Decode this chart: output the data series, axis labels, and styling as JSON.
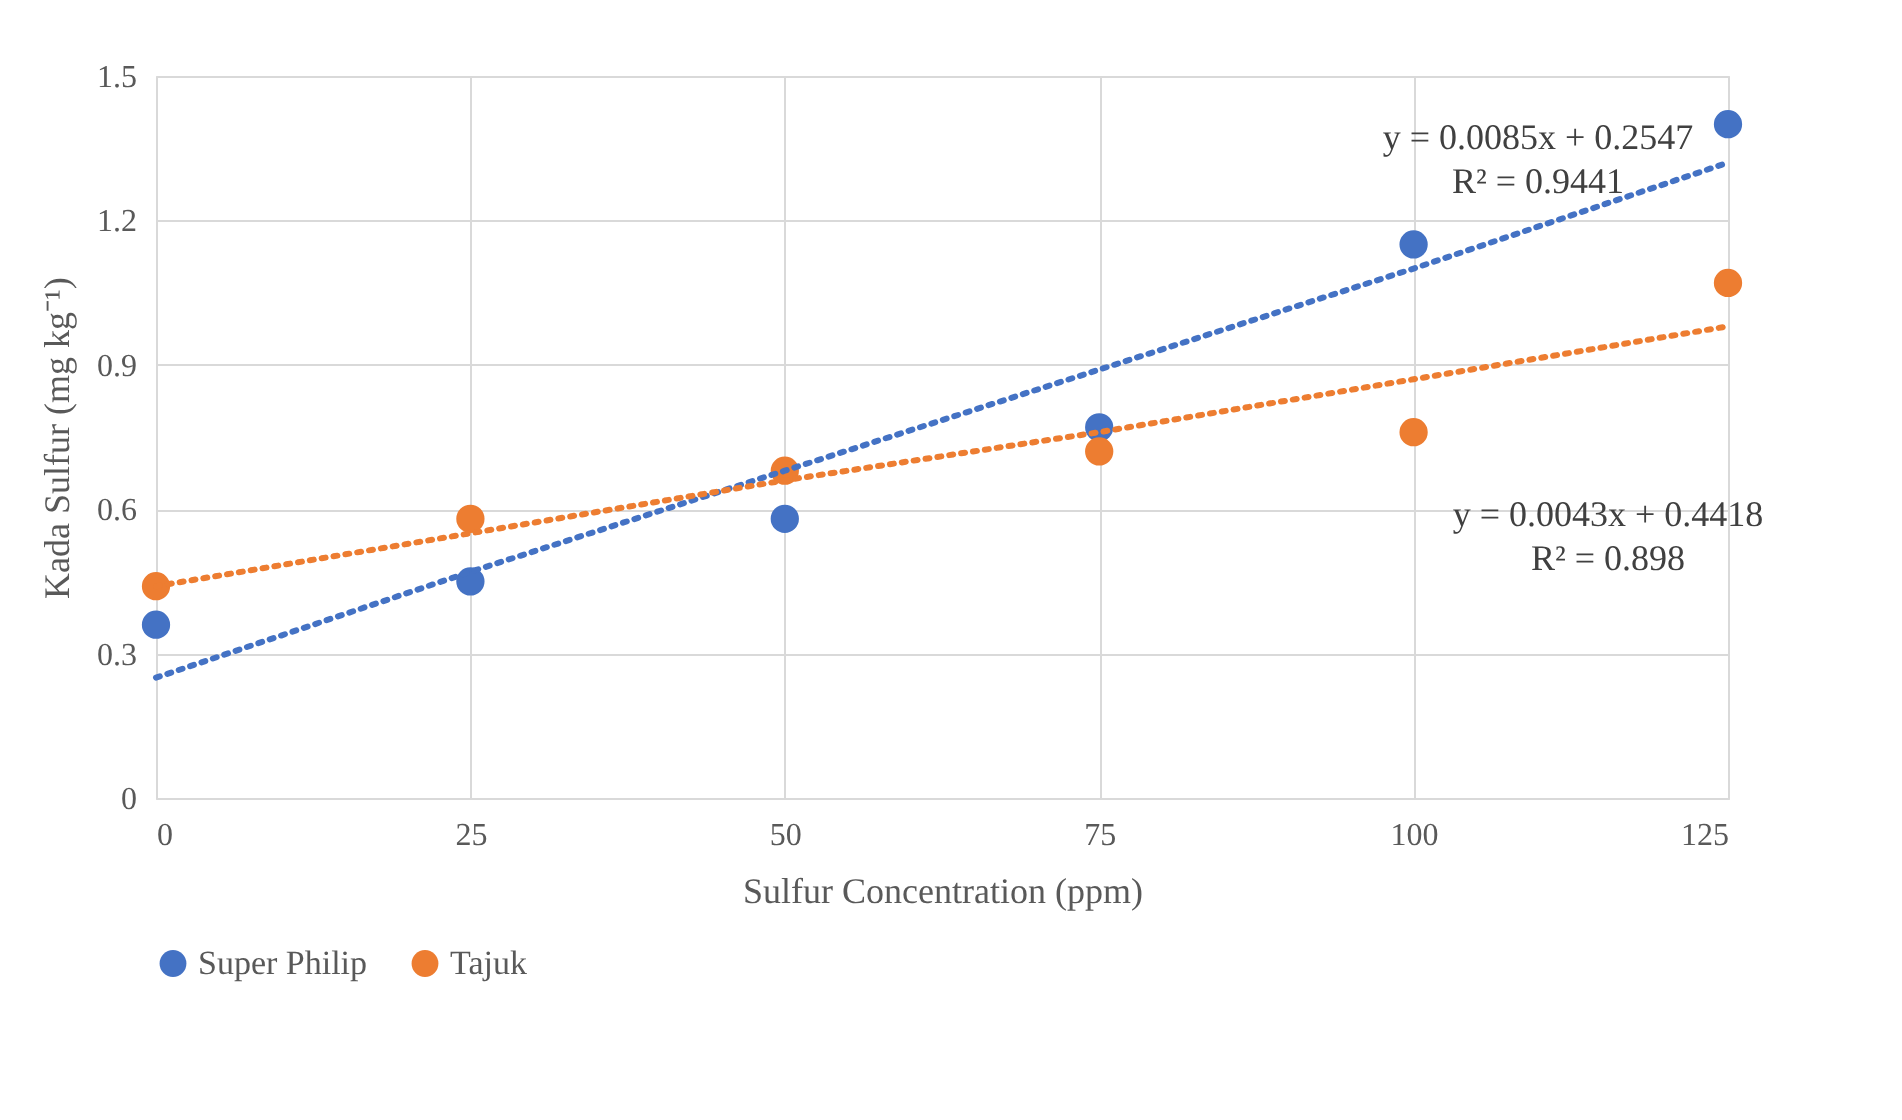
{
  "chart_data": {
    "type": "scatter",
    "xlabel": "Sulfur Concentration (ppm)",
    "ylabel": "Kada Sulfur (mg kg⁻¹)",
    "x": [
      0,
      25,
      50,
      75,
      100,
      125
    ],
    "series": [
      {
        "name": "Super Philip",
        "color": "#4472c4",
        "values": [
          0.36,
          0.45,
          0.58,
          0.77,
          1.15,
          1.4
        ]
      },
      {
        "name": "Tajuk",
        "color": "#ed7d31",
        "values": [
          0.44,
          0.58,
          0.68,
          0.72,
          0.76,
          1.07
        ]
      },
      {
        "type": "line",
        "color": "#4472c4",
        "values": [
          0.25,
          0.47,
          0.68,
          0.89,
          1.1,
          1.32
        ],
        "line_style": "dotted",
        "marker": "none"
      },
      {
        "type": "line",
        "color": "#ed7d31",
        "values": [
          0.44,
          0.55,
          0.66,
          0.76,
          0.87,
          0.98
        ],
        "line_style": "dotted",
        "marker": "none"
      }
    ],
    "annotations": [
      "y = 0.0085x + 0.2547",
      "R² = 0.9441",
      "y = 0.0043x + 0.4418",
      "R² = 0.898"
    ],
    "xlim": [
      0,
      125
    ],
    "xticks": [
      0,
      25,
      50,
      75,
      100,
      125
    ],
    "ylim": [
      0,
      1.5
    ],
    "yticks": [
      0,
      0.3,
      0.6,
      0.9,
      1.2,
      1.5
    ],
    "grid": true,
    "legend": "bottom",
    "marker": "circle"
  }
}
